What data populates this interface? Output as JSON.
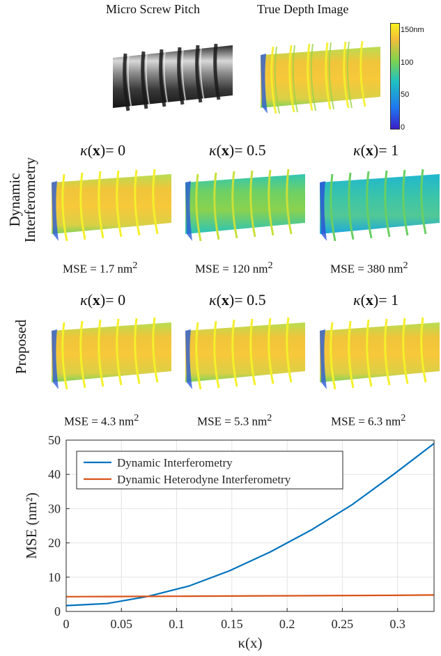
{
  "top": {
    "photo_title": "Micro Screw Pitch",
    "depth_title": "True Depth Image"
  },
  "colorbar": {
    "unit": "nm",
    "ticks": [
      "150",
      "100",
      "50",
      "0"
    ],
    "range": [
      0,
      150
    ],
    "colors": [
      "#3a1dc9",
      "#1f78f0",
      "#1fc1c1",
      "#7fd34e",
      "#f3be3a",
      "#f9f01a"
    ]
  },
  "kappa_text": {
    "prefix": "κ",
    "x": "x",
    "paren_open": "(",
    "paren_close": ")= "
  },
  "row1": {
    "label_line1": "Dynamic",
    "label_line2": "Interferometry",
    "panels": [
      {
        "kappa": "0",
        "mse_prefix": "MSE = 1.7 nm",
        "mse_sup": "2"
      },
      {
        "kappa": "0.5",
        "mse_prefix": "MSE = 120 nm",
        "mse_sup": "2"
      },
      {
        "kappa": "1",
        "mse_prefix": "MSE = 380 nm",
        "mse_sup": "2"
      }
    ]
  },
  "row2": {
    "label": "Proposed",
    "panels": [
      {
        "kappa": "0",
        "mse_prefix": "MSE = 4.3 nm",
        "mse_sup": "2"
      },
      {
        "kappa": "0.5",
        "mse_prefix": "MSE = 5.3 nm",
        "mse_sup": "2"
      },
      {
        "kappa": "1",
        "mse_prefix": "MSE = 6.3 nm",
        "mse_sup": "2"
      }
    ]
  },
  "chart_data": {
    "type": "line",
    "title": "",
    "xlabel": "κ(x)",
    "ylabel": "MSE (nm²)",
    "xlim": [
      0,
      0.333
    ],
    "ylim": [
      0,
      50
    ],
    "xticks": [
      0,
      0.05,
      0.1,
      0.15,
      0.2,
      0.25,
      0.3
    ],
    "xtick_labels": [
      "0",
      "0.05",
      "0.1",
      "0.15",
      "0.2",
      "0.25",
      "0.3"
    ],
    "yticks": [
      0,
      10,
      20,
      30,
      40,
      50
    ],
    "ytick_labels": [
      "0",
      "10",
      "20",
      "30",
      "40",
      "50"
    ],
    "grid": true,
    "legend_position": "top-left",
    "series": [
      {
        "name": "Dynamic Interferometry",
        "color": "#0072bd",
        "x": [
          0,
          0.037,
          0.074,
          0.111,
          0.148,
          0.185,
          0.222,
          0.259,
          0.296,
          0.333
        ],
        "y": [
          1.7,
          2.3,
          4.4,
          7.4,
          11.9,
          17.4,
          23.8,
          31.2,
          39.9,
          49.0
        ]
      },
      {
        "name": "Dynamic Heterodyne Interferometry",
        "color": "#d95319",
        "x": [
          0,
          0.037,
          0.074,
          0.111,
          0.148,
          0.185,
          0.222,
          0.259,
          0.296,
          0.333
        ],
        "y": [
          4.3,
          4.35,
          4.4,
          4.45,
          4.5,
          4.55,
          4.6,
          4.65,
          4.7,
          4.8
        ]
      }
    ]
  }
}
